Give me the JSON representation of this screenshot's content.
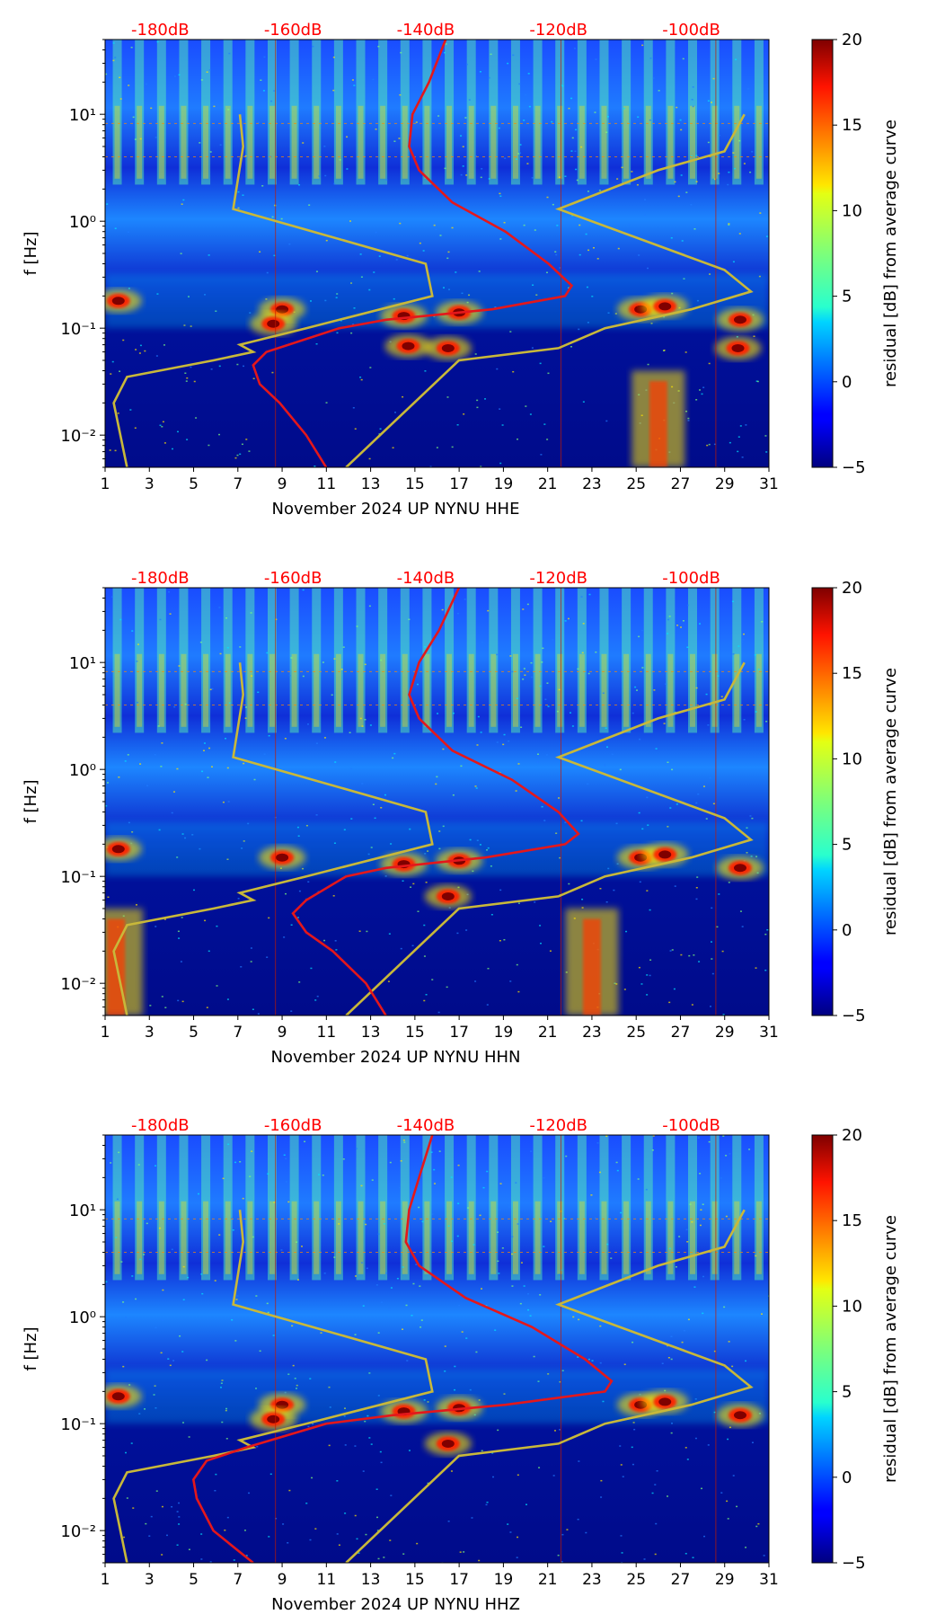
{
  "chart_data": [
    {
      "type": "heatmap",
      "channel": "HHE",
      "xlabel": "November 2024 UP NYNU  HHE",
      "ylabel": "f [Hz]",
      "colorbar_label": "residual [dB] from average curve",
      "colorbar_range": [
        -5,
        20
      ],
      "colorbar_ticks": [
        "−5",
        "0",
        "5",
        "10",
        "15",
        "20"
      ],
      "colorbar_tick_values": [
        -5,
        0,
        5,
        10,
        15,
        20
      ],
      "x_range": [
        1,
        31
      ],
      "x_ticks": [
        "1",
        "3",
        "5",
        "7",
        "9",
        "11",
        "13",
        "15",
        "17",
        "19",
        "21",
        "23",
        "25",
        "27",
        "29",
        "31"
      ],
      "y_range": [
        0.005,
        50
      ],
      "y_scale": "log",
      "y_ticks": [
        "10⁻²",
        "10⁻¹",
        "10⁰",
        "10¹"
      ],
      "y_tick_values": [
        0.01,
        0.1,
        1,
        10
      ],
      "db_axis_labels": [
        "-180dB",
        "-160dB",
        "-140dB",
        "-120dB",
        "-100dB"
      ],
      "db_axis_values": [
        -180,
        -160,
        -140,
        -120,
        -100
      ],
      "db_range": [
        -188.3,
        -88.3
      ],
      "average_curve_db": [
        [
          50,
          -137
        ],
        [
          20,
          -139.5
        ],
        [
          10,
          -142
        ],
        [
          5,
          -142.5
        ],
        [
          3,
          -141
        ],
        [
          1.5,
          -136
        ],
        [
          0.8,
          -128
        ],
        [
          0.4,
          -121.5
        ],
        [
          0.25,
          -118
        ],
        [
          0.2,
          -119
        ],
        [
          0.15,
          -130
        ],
        [
          0.12,
          -146
        ],
        [
          0.1,
          -153
        ],
        [
          0.06,
          -164
        ],
        [
          0.045,
          -166
        ],
        [
          0.03,
          -165
        ],
        [
          0.02,
          -162
        ],
        [
          0.01,
          -158
        ],
        [
          0.005,
          -155
        ]
      ],
      "noise_model_low_db": [
        [
          10,
          -168
        ],
        [
          5,
          -167.5
        ],
        [
          1.3,
          -169
        ],
        [
          0.8,
          -157
        ],
        [
          0.4,
          -140
        ],
        [
          0.2,
          -139
        ],
        [
          0.1,
          -158
        ],
        [
          0.07,
          -168
        ],
        [
          0.06,
          -166
        ],
        [
          0.05,
          -172
        ],
        [
          0.035,
          -185
        ],
        [
          0.02,
          -187
        ],
        [
          0.01,
          -186
        ],
        [
          0.005,
          -185
        ]
      ],
      "noise_model_high_db": [
        [
          10,
          -92
        ],
        [
          4.5,
          -95
        ],
        [
          3,
          -105
        ],
        [
          1.3,
          -120
        ],
        [
          0.35,
          -95
        ],
        [
          0.22,
          -91
        ],
        [
          0.15,
          -100
        ],
        [
          0.1,
          -113
        ],
        [
          0.065,
          -120
        ],
        [
          0.05,
          -135
        ],
        [
          0.005,
          -152
        ]
      ],
      "bright_events": [
        [
          14.5,
          0.13
        ],
        [
          17,
          0.14
        ],
        [
          16.5,
          0.065
        ],
        [
          14.7,
          0.068
        ],
        [
          25.2,
          0.15
        ],
        [
          26.3,
          0.16
        ],
        [
          29.7,
          0.12
        ],
        [
          29.6,
          0.065
        ],
        [
          1.6,
          0.18
        ],
        [
          9,
          0.15
        ],
        [
          8.6,
          0.11
        ]
      ],
      "broadband_events": [
        [
          26,
          0.005,
          0.04
        ]
      ]
    },
    {
      "type": "heatmap",
      "channel": "HHN",
      "xlabel": "November 2024 UP NYNU  HHN",
      "ylabel": "f [Hz]",
      "colorbar_label": "residual [dB] from average curve",
      "colorbar_range": [
        -5,
        20
      ],
      "colorbar_ticks": [
        "−5",
        "0",
        "5",
        "10",
        "15",
        "20"
      ],
      "colorbar_tick_values": [
        -5,
        0,
        5,
        10,
        15,
        20
      ],
      "x_range": [
        1,
        31
      ],
      "x_ticks": [
        "1",
        "3",
        "5",
        "7",
        "9",
        "11",
        "13",
        "15",
        "17",
        "19",
        "21",
        "23",
        "25",
        "27",
        "29",
        "31"
      ],
      "y_range": [
        0.005,
        50
      ],
      "y_scale": "log",
      "y_ticks": [
        "10⁻²",
        "10⁻¹",
        "10⁰",
        "10¹"
      ],
      "y_tick_values": [
        0.01,
        0.1,
        1,
        10
      ],
      "db_axis_labels": [
        "-180dB",
        "-160dB",
        "-140dB",
        "-120dB",
        "-100dB"
      ],
      "db_axis_values": [
        -180,
        -160,
        -140,
        -120,
        -100
      ],
      "db_range": [
        -188.3,
        -88.3
      ],
      "average_curve_db": [
        [
          50,
          -135
        ],
        [
          20,
          -138
        ],
        [
          10,
          -141
        ],
        [
          5,
          -142.5
        ],
        [
          3,
          -141
        ],
        [
          1.5,
          -136
        ],
        [
          0.8,
          -127
        ],
        [
          0.4,
          -120
        ],
        [
          0.25,
          -117
        ],
        [
          0.2,
          -119
        ],
        [
          0.15,
          -131
        ],
        [
          0.12,
          -146
        ],
        [
          0.1,
          -152
        ],
        [
          0.06,
          -158
        ],
        [
          0.045,
          -160
        ],
        [
          0.03,
          -158
        ],
        [
          0.02,
          -154
        ],
        [
          0.01,
          -149
        ],
        [
          0.005,
          -146
        ]
      ],
      "noise_model_low_db": [
        [
          10,
          -168
        ],
        [
          5,
          -167.5
        ],
        [
          1.3,
          -169
        ],
        [
          0.8,
          -157
        ],
        [
          0.4,
          -140
        ],
        [
          0.2,
          -139
        ],
        [
          0.1,
          -158
        ],
        [
          0.07,
          -168
        ],
        [
          0.06,
          -166
        ],
        [
          0.05,
          -172
        ],
        [
          0.035,
          -185
        ],
        [
          0.02,
          -187
        ],
        [
          0.01,
          -186
        ],
        [
          0.005,
          -185
        ]
      ],
      "noise_model_high_db": [
        [
          10,
          -92
        ],
        [
          4.5,
          -95
        ],
        [
          3,
          -105
        ],
        [
          1.3,
          -120
        ],
        [
          0.35,
          -95
        ],
        [
          0.22,
          -91
        ],
        [
          0.15,
          -100
        ],
        [
          0.1,
          -113
        ],
        [
          0.065,
          -120
        ],
        [
          0.05,
          -135
        ],
        [
          0.005,
          -152
        ]
      ],
      "bright_events": [
        [
          14.5,
          0.13
        ],
        [
          17,
          0.14
        ],
        [
          16.5,
          0.065
        ],
        [
          25.2,
          0.15
        ],
        [
          26.3,
          0.16
        ],
        [
          29.7,
          0.12
        ],
        [
          1.6,
          0.18
        ],
        [
          9,
          0.15
        ]
      ],
      "broadband_events": [
        [
          23,
          0.005,
          0.05
        ],
        [
          1.5,
          0.005,
          0.05
        ]
      ]
    },
    {
      "type": "heatmap",
      "channel": "HHZ",
      "xlabel": "November 2024 UP NYNU  HHZ",
      "ylabel": "f [Hz]",
      "colorbar_label": "residual [dB] from average curve",
      "colorbar_range": [
        -5,
        20
      ],
      "colorbar_ticks": [
        "−5",
        "0",
        "5",
        "10",
        "15",
        "20"
      ],
      "colorbar_tick_values": [
        -5,
        0,
        5,
        10,
        15,
        20
      ],
      "x_range": [
        1,
        31
      ],
      "x_ticks": [
        "1",
        "3",
        "5",
        "7",
        "9",
        "11",
        "13",
        "15",
        "17",
        "19",
        "21",
        "23",
        "25",
        "27",
        "29",
        "31"
      ],
      "y_range": [
        0.005,
        50
      ],
      "y_scale": "log",
      "y_ticks": [
        "10⁻²",
        "10⁻¹",
        "10⁰",
        "10¹"
      ],
      "y_tick_values": [
        0.01,
        0.1,
        1,
        10
      ],
      "db_axis_labels": [
        "-180dB",
        "-160dB",
        "-140dB",
        "-120dB",
        "-100dB"
      ],
      "db_axis_values": [
        -180,
        -160,
        -140,
        -120,
        -100
      ],
      "db_range": [
        -188.3,
        -88.3
      ],
      "average_curve_db": [
        [
          50,
          -139
        ],
        [
          20,
          -141
        ],
        [
          10,
          -142.5
        ],
        [
          5,
          -143
        ],
        [
          3,
          -141
        ],
        [
          1.5,
          -134
        ],
        [
          0.8,
          -124
        ],
        [
          0.4,
          -116
        ],
        [
          0.25,
          -112
        ],
        [
          0.2,
          -113
        ],
        [
          0.15,
          -128
        ],
        [
          0.12,
          -145
        ],
        [
          0.1,
          -155
        ],
        [
          0.06,
          -167
        ],
        [
          0.045,
          -173
        ],
        [
          0.03,
          -175
        ],
        [
          0.02,
          -174.5
        ],
        [
          0.01,
          -172
        ],
        [
          0.005,
          -166
        ]
      ],
      "noise_model_low_db": [
        [
          10,
          -168
        ],
        [
          5,
          -167.5
        ],
        [
          1.3,
          -169
        ],
        [
          0.8,
          -157
        ],
        [
          0.4,
          -140
        ],
        [
          0.2,
          -139
        ],
        [
          0.1,
          -158
        ],
        [
          0.07,
          -168
        ],
        [
          0.06,
          -166
        ],
        [
          0.05,
          -172
        ],
        [
          0.035,
          -185
        ],
        [
          0.02,
          -187
        ],
        [
          0.01,
          -186
        ],
        [
          0.005,
          -185
        ]
      ],
      "noise_model_high_db": [
        [
          10,
          -92
        ],
        [
          4.5,
          -95
        ],
        [
          3,
          -105
        ],
        [
          1.3,
          -120
        ],
        [
          0.35,
          -95
        ],
        [
          0.22,
          -91
        ],
        [
          0.15,
          -100
        ],
        [
          0.1,
          -113
        ],
        [
          0.065,
          -120
        ],
        [
          0.05,
          -135
        ],
        [
          0.005,
          -152
        ]
      ],
      "bright_events": [
        [
          14.5,
          0.13
        ],
        [
          17,
          0.14
        ],
        [
          16.5,
          0.065
        ],
        [
          25.2,
          0.15
        ],
        [
          26.3,
          0.16
        ],
        [
          29.7,
          0.12
        ],
        [
          1.6,
          0.18
        ],
        [
          9,
          0.15
        ],
        [
          8.6,
          0.11
        ]
      ],
      "broadband_events": []
    }
  ],
  "colors": {
    "db_label": "#ff0000",
    "average_curve": "#e4171b",
    "noise_model": "#c8b83a",
    "text": "#000000"
  }
}
